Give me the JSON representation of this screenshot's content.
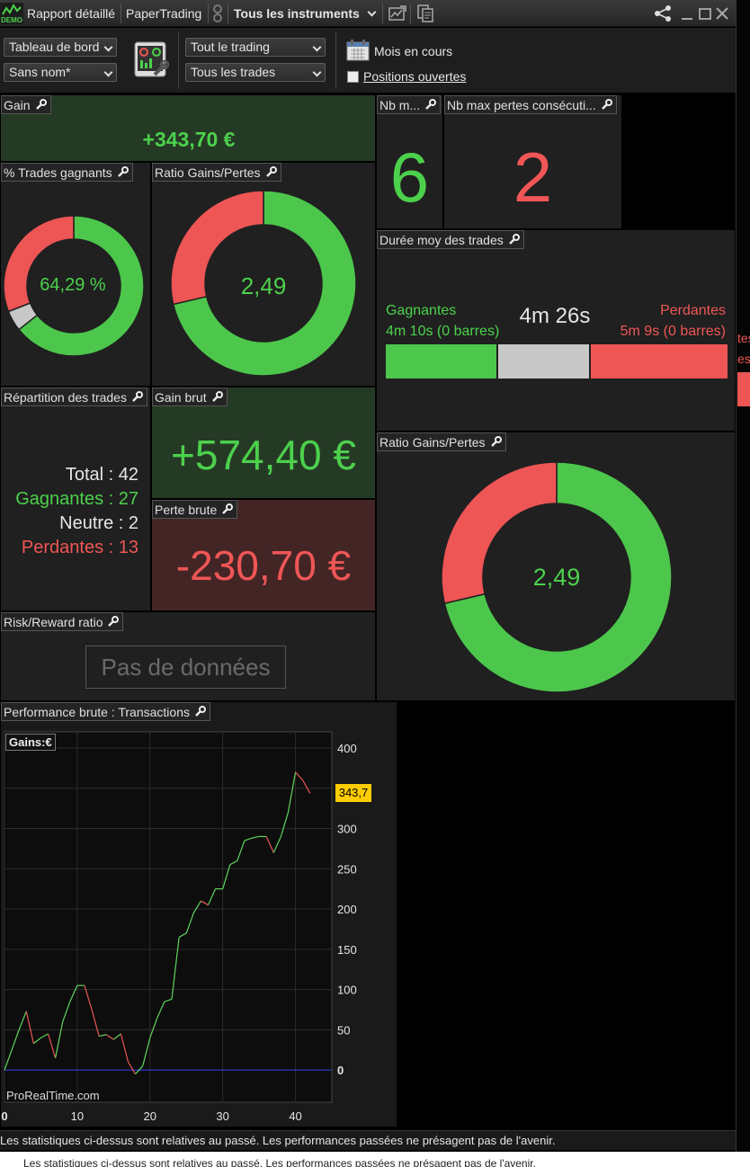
{
  "topbar": {
    "badge": "DEMO",
    "report_label": "Rapport détaillé",
    "account_label": "PaperTrading",
    "instruments_label": "Tous les instruments"
  },
  "toolbar": {
    "view_select": "Tableau de bord",
    "name_select": "Sans nom*",
    "trading_select": "Tout le trading",
    "trades_select": "Tous les trades",
    "period_label": "Mois en cours",
    "open_positions_label": "Positions ouvertes",
    "open_positions_checked": false
  },
  "gain": {
    "title": "Gain",
    "value": "+343,70 €"
  },
  "nb_max_gains": {
    "title": "Nb m...",
    "value": "6"
  },
  "nb_max_losses": {
    "title": "Nb max pertes consécuti...",
    "value": "2"
  },
  "win_pct": {
    "title": "% Trades gagnants",
    "center": "64,29 %",
    "slices": [
      {
        "name": "Gagnants",
        "value": 27,
        "color": "#4cc74c"
      },
      {
        "name": "Neutre",
        "value": 2,
        "color": "#c8c8c8"
      },
      {
        "name": "Perdants",
        "value": 13,
        "color": "#ee5555"
      }
    ]
  },
  "ratio_small": {
    "title": "Ratio Gains/Pertes",
    "center": "2,49",
    "slices": [
      {
        "name": "Gains",
        "value": 574.4,
        "color": "#4cc74c"
      },
      {
        "name": "Pertes",
        "value": 230.7,
        "color": "#ee5555"
      }
    ]
  },
  "duration": {
    "title": "Durée moy des trades",
    "winning_label": "Gagnantes",
    "winning_value": "4m 10s (0 barres)",
    "average": "4m 26s",
    "losing_label": "Perdantes",
    "losing_value": "5m 9s (0 barres)",
    "bar_green": 0.33,
    "bar_grey": 0.27,
    "bar_red": 0.4
  },
  "distribution": {
    "title": "Répartition des trades",
    "total": "Total : 42",
    "winning": "Gagnantes : 27",
    "neutral": "Neutre : 2",
    "losing": "Perdantes : 13"
  },
  "gross_gain": {
    "title": "Gain brut",
    "value": "+574,40 €"
  },
  "gross_loss": {
    "title": "Perte brute",
    "value": "-230,70 €"
  },
  "ratio_large": {
    "title": "Ratio Gains/Pertes",
    "center": "2,49",
    "slices": [
      {
        "name": "Gains",
        "value": 574.4,
        "color": "#4cc74c"
      },
      {
        "name": "Pertes",
        "value": 230.7,
        "color": "#ee5555"
      }
    ]
  },
  "risk_reward": {
    "title": "Risk/Reward ratio",
    "no_data": "Pas de données"
  },
  "performance": {
    "title": "Performance brute : Transactions",
    "legend": "Gains:€",
    "watermark": "ProRealTime.com",
    "last_value_label": "343,7"
  },
  "chart_data": {
    "type": "line",
    "title": "Performance brute : Transactions",
    "ylabel": "Gains:€",
    "xlim": [
      0,
      45
    ],
    "ylim": [
      -40,
      420
    ],
    "x_ticks": [
      0,
      10,
      20,
      30,
      40
    ],
    "y_ticks": [
      0,
      50,
      100,
      150,
      200,
      250,
      300,
      350,
      400
    ],
    "grid": true,
    "x": [
      0,
      1,
      2,
      3,
      4,
      5,
      6,
      7,
      8,
      9,
      10,
      11,
      12,
      13,
      14,
      15,
      16,
      17,
      18,
      19,
      20,
      21,
      22,
      23,
      24,
      25,
      26,
      27,
      28,
      29,
      30,
      31,
      32,
      33,
      34,
      35,
      36,
      37,
      38,
      39,
      40,
      41,
      42
    ],
    "values": [
      0,
      25,
      50,
      73,
      33,
      40,
      45,
      15,
      60,
      85,
      105,
      105,
      75,
      42,
      44,
      38,
      45,
      10,
      -5,
      5,
      40,
      65,
      85,
      88,
      165,
      170,
      195,
      210,
      205,
      225,
      225,
      255,
      260,
      285,
      288,
      290,
      290,
      270,
      290,
      320,
      370,
      360,
      343.7
    ]
  },
  "disclaimer": "Les statistiques ci-dessus sont relatives au passé. Les performances passées ne présagent pas de l'avenir.",
  "disclaimer_shadow": "Les statistiques ci-dessus sont relatives au passé. Les performances passées ne présagent pas de l'avenir.",
  "side_fragments": {
    "a": "tes",
    "b": "es"
  }
}
